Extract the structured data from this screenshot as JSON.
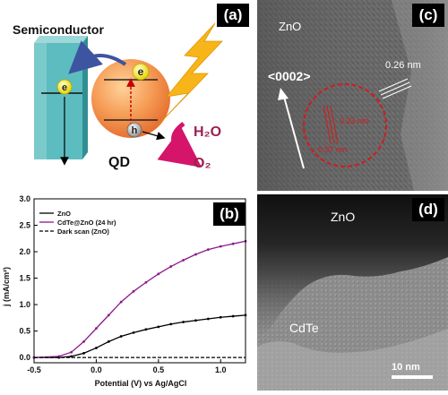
{
  "panel_a": {
    "label": "(a)",
    "semiconductor": "Semiconductor",
    "qd": "QD",
    "electron_left": "e",
    "electron_right": "e",
    "hole": "h",
    "h2o": "H₂O",
    "o2": "O₂"
  },
  "panel_b": {
    "label": "(b)",
    "chart_data": {
      "type": "line",
      "xlabel": "Potential (V) vs Ag/AgCl",
      "ylabel": "j (mA/cm²)",
      "xlim": [
        -0.5,
        1.2
      ],
      "ylim": [
        -0.1,
        3.0
      ],
      "x_ticks": [
        "-0.5",
        "0.0",
        "0.5",
        "1.0"
      ],
      "y_ticks": [
        "0.0",
        "0.5",
        "1.0",
        "1.5",
        "2.0",
        "2.5",
        "3.0"
      ],
      "legend_position": "top-left",
      "series": [
        {
          "name": "ZnO",
          "color": "#000000",
          "x": [
            -0.5,
            -0.3,
            -0.2,
            -0.1,
            0.0,
            0.1,
            0.2,
            0.3,
            0.4,
            0.5,
            0.6,
            0.7,
            0.8,
            0.9,
            1.0,
            1.1,
            1.2
          ],
          "values": [
            0.0,
            0.0,
            0.02,
            0.08,
            0.18,
            0.3,
            0.4,
            0.47,
            0.53,
            0.58,
            0.63,
            0.67,
            0.7,
            0.73,
            0.76,
            0.78,
            0.8
          ]
        },
        {
          "name": "CdTe@ZnO (24 hr)",
          "color": "#8b1a89",
          "x": [
            -0.5,
            -0.3,
            -0.2,
            -0.1,
            0.0,
            0.1,
            0.2,
            0.3,
            0.4,
            0.5,
            0.6,
            0.7,
            0.8,
            0.9,
            1.0,
            1.1,
            1.2
          ],
          "values": [
            0.0,
            0.02,
            0.1,
            0.3,
            0.55,
            0.8,
            1.05,
            1.25,
            1.42,
            1.58,
            1.72,
            1.84,
            1.95,
            2.04,
            2.1,
            2.15,
            2.2
          ]
        },
        {
          "name": "Dark scan (ZnO)",
          "color": "#000000",
          "x": [
            -0.5,
            1.2
          ],
          "values": [
            0.0,
            0.0
          ]
        }
      ]
    }
  },
  "panel_c": {
    "label": "(c)",
    "zno": "ZnO",
    "direction": "<0002>",
    "spacing_outer": "0.26 nm",
    "spacing_inner_1": "0.23 nm",
    "spacing_inner_2": "0.37 nm"
  },
  "panel_d": {
    "label": "(d)",
    "zno": "ZnO",
    "cdte": "CdTe",
    "scale_bar": "10 nm"
  }
}
